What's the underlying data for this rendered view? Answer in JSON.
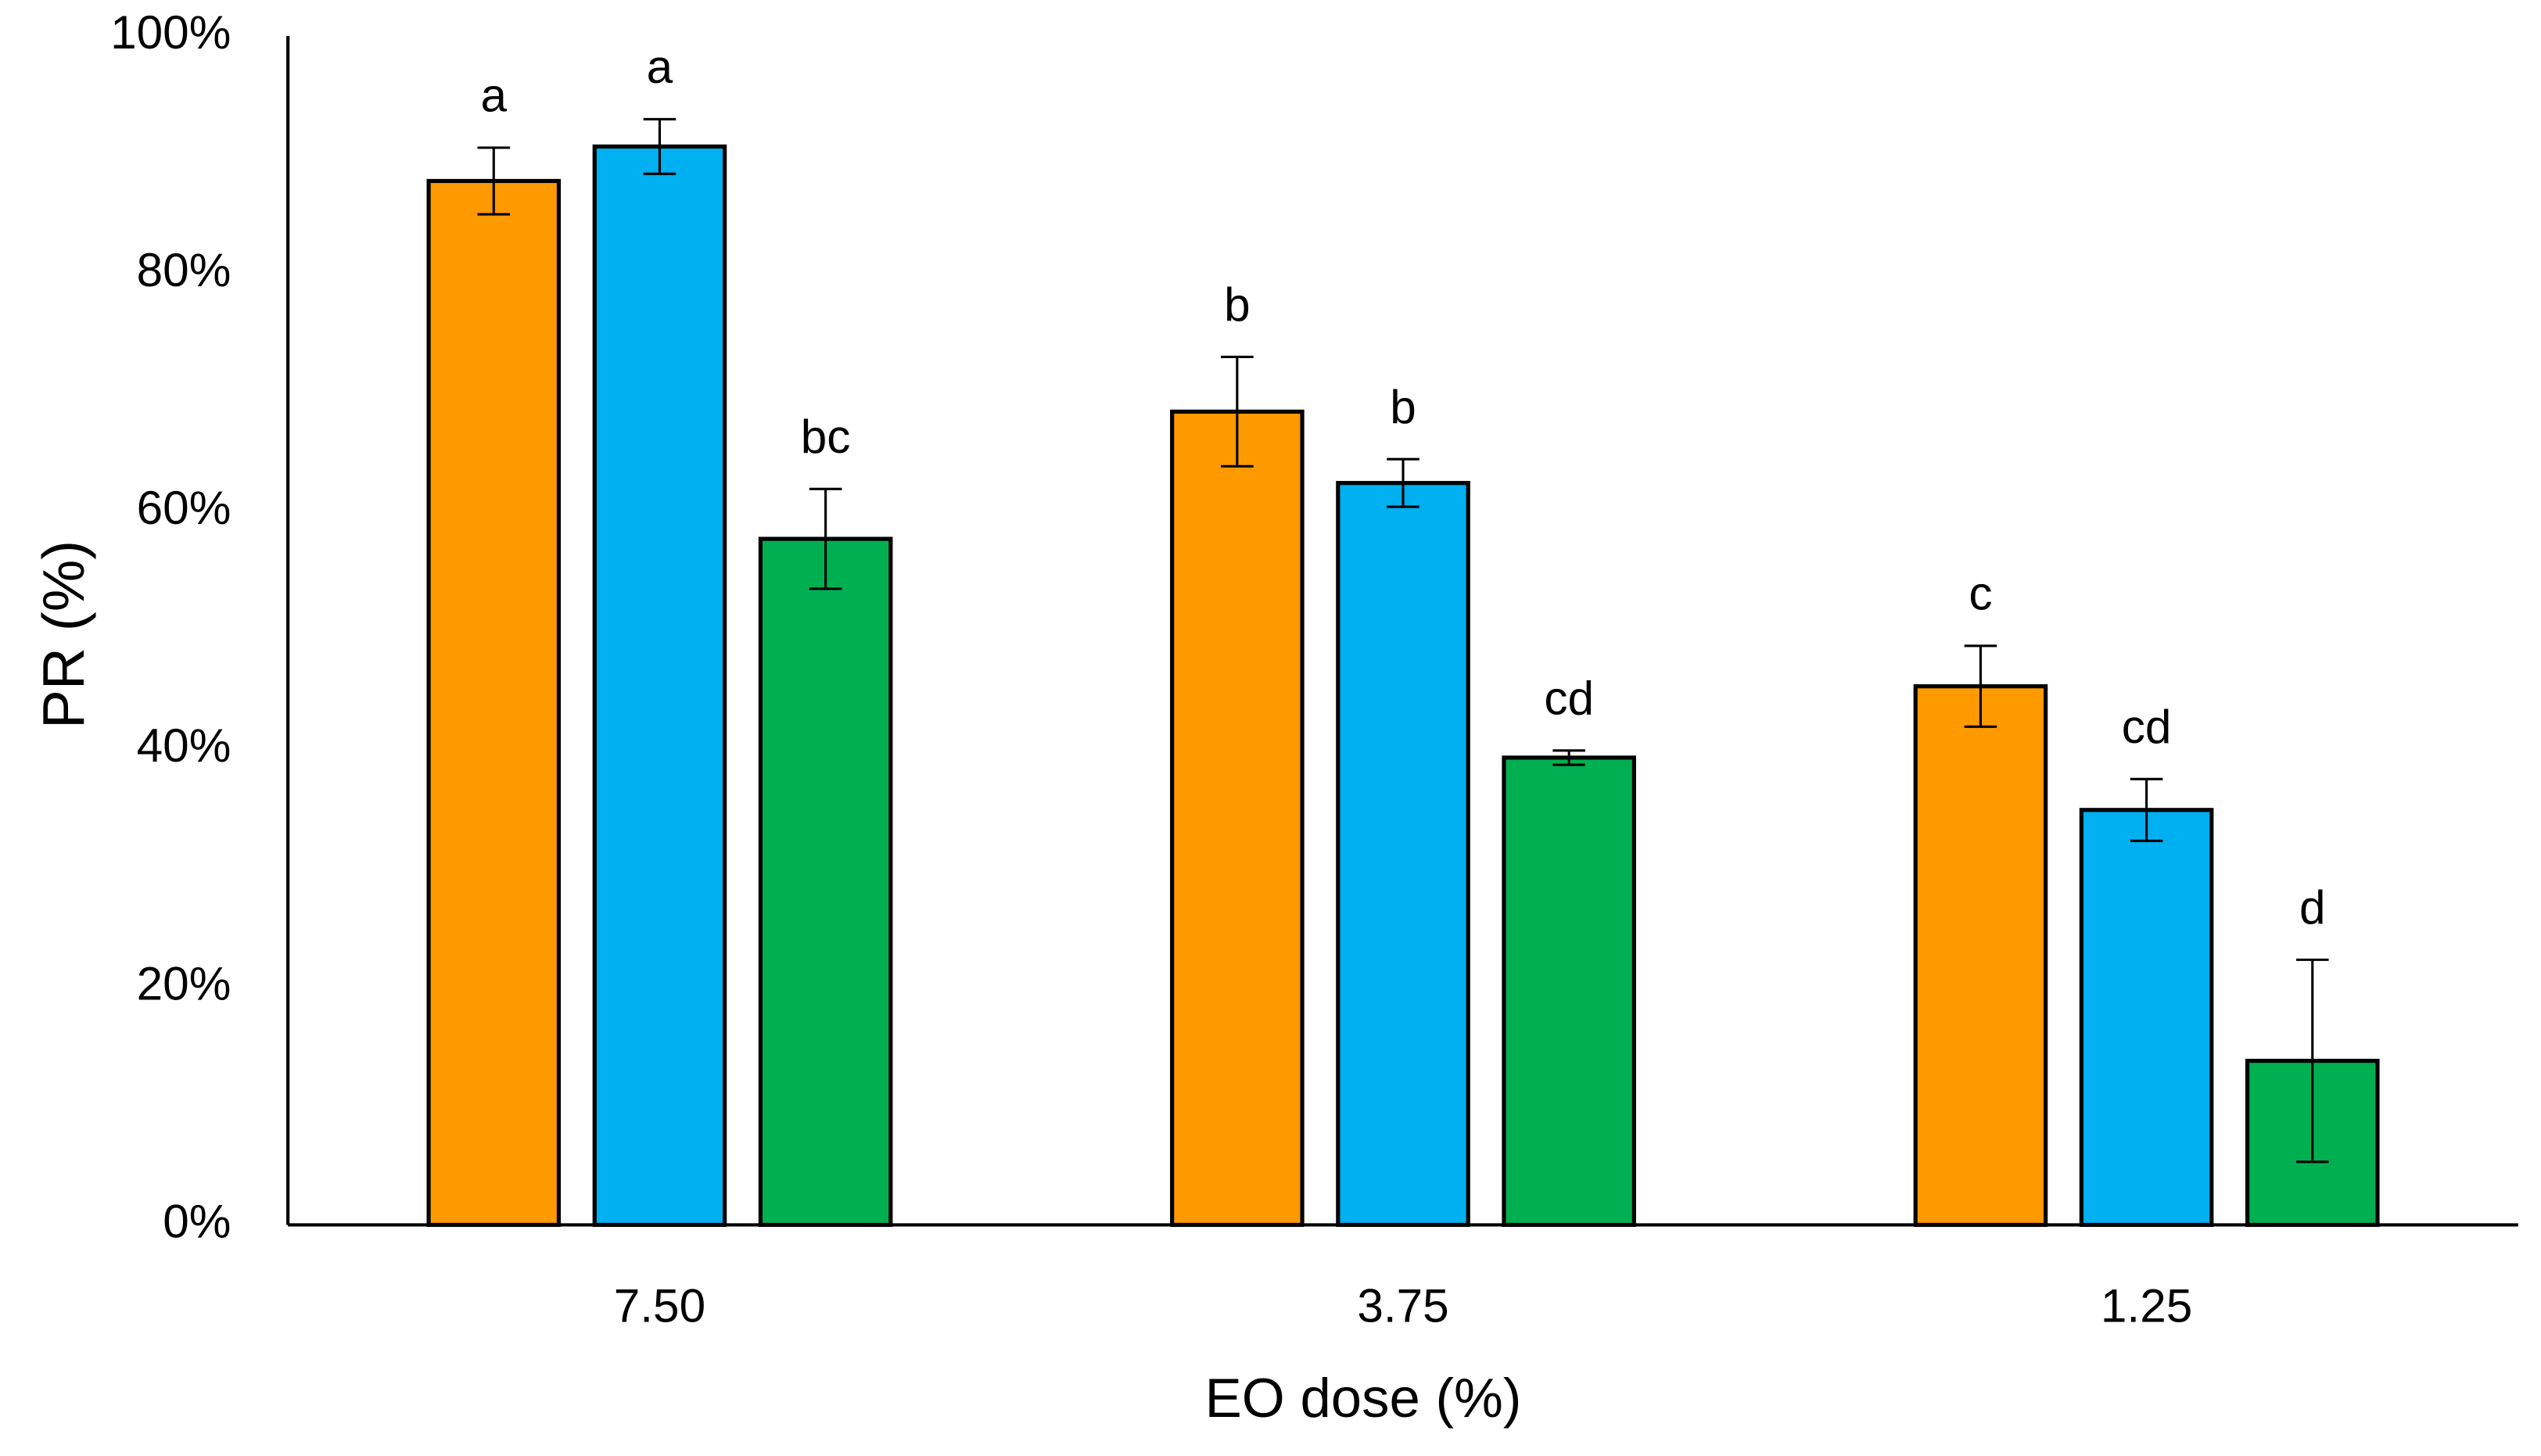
{
  "chart_data": {
    "type": "bar",
    "x_label": "EO dose (%)",
    "y_label": "PR (%)",
    "categories": [
      "7.50",
      "3.75",
      "1.25"
    ],
    "series": [
      {
        "color": "#ff9900",
        "values": [
          87.8,
          68.4,
          45.3
        ],
        "errors": [
          2.8,
          4.6,
          3.4
        ],
        "labels": [
          "a",
          "b",
          "c"
        ]
      },
      {
        "color": "#00b0f0",
        "values": [
          90.7,
          62.4,
          34.9
        ],
        "errors": [
          2.3,
          2.0,
          2.6
        ],
        "labels": [
          "a",
          "b",
          "cd"
        ]
      },
      {
        "color": "#00b050",
        "values": [
          57.7,
          39.3,
          13.8
        ],
        "errors": [
          4.2,
          0.6,
          8.5
        ],
        "labels": [
          "bc",
          "cd",
          "d"
        ]
      }
    ],
    "ylim": [
      0,
      100
    ],
    "yticks": [
      {
        "value": 0,
        "label": "0%"
      },
      {
        "value": 20,
        "label": "20%"
      },
      {
        "value": 40,
        "label": "40%"
      },
      {
        "value": 60,
        "label": "60%"
      },
      {
        "value": 80,
        "label": "80%"
      },
      {
        "value": 100,
        "label": "100%"
      }
    ],
    "grid": false
  }
}
